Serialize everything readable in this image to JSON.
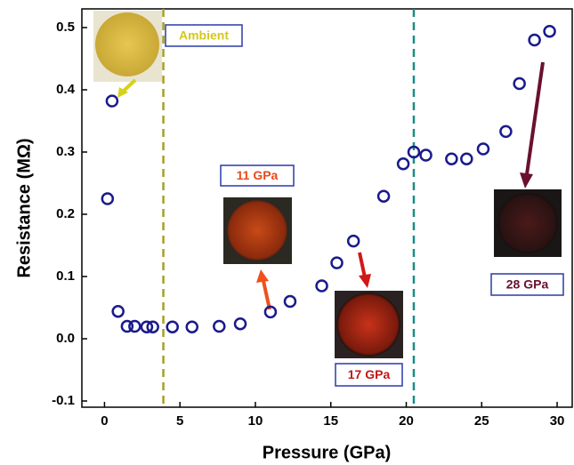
{
  "chart_data": {
    "type": "scatter",
    "x_label": "Pressure (GPa)",
    "y_label": "Resistance (MΩ)",
    "xlim": [
      -1.5,
      31
    ],
    "xticks": [
      0,
      5,
      10,
      15,
      20,
      25,
      30
    ],
    "ylim": [
      -0.11,
      0.53
    ],
    "yticks": [
      -0.1,
      {
        "value": 0,
        "label": "0.0"
      },
      0.1,
      0.2,
      0.3,
      0.4,
      0.5
    ],
    "series": [
      {
        "color": "#1a1a8c",
        "x": [
          0.2,
          0.5,
          0.9,
          1.5,
          2.0,
          2.8,
          3.2,
          4.5,
          5.8,
          7.6,
          9.0,
          11.0,
          12.3,
          14.4,
          15.4,
          16.5,
          18.5,
          19.8,
          20.5,
          21.3,
          23.0,
          24.0,
          25.1,
          26.6,
          27.5,
          28.5,
          29.5
        ],
        "values": [
          0.225,
          0.382,
          0.044,
          0.02,
          0.02,
          0.019,
          0.019,
          0.019,
          0.019,
          0.02,
          0.024,
          0.043,
          0.06,
          0.085,
          0.122,
          0.157,
          0.229,
          0.281,
          0.3,
          0.295,
          0.289,
          0.289,
          0.305,
          0.333,
          0.41,
          0.48,
          0.494
        ]
      }
    ],
    "vlines": [
      {
        "x": 3.9,
        "color": "#a6a024"
      },
      {
        "x": 20.5,
        "color": "#1a8c88"
      }
    ],
    "annotations": [
      {
        "text": "Ambient",
        "color": "#d4c81c"
      },
      {
        "text": "11 GPa",
        "color": "#e84a1c"
      },
      {
        "text": "17 GPa",
        "color": "#c01818"
      },
      {
        "text": "28 GPa",
        "color": "#6a1030"
      }
    ]
  }
}
